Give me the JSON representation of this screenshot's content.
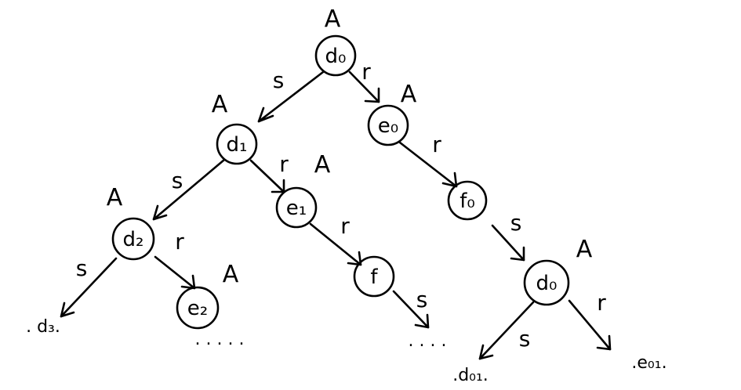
{
  "diagram": {
    "nodes": {
      "d0": {
        "label": "d₀",
        "annotation": "A"
      },
      "d1": {
        "label": "d₁",
        "annotation": "A"
      },
      "e0": {
        "label": "e₀",
        "annotation": "A"
      },
      "d2": {
        "label": "d₂",
        "annotation": "A"
      },
      "e1": {
        "label": "e₁",
        "annotation": "A"
      },
      "f0": {
        "label": "f₀"
      },
      "e2": {
        "label": "e₂",
        "annotation": "A"
      },
      "f": {
        "label": "f"
      },
      "d0b": {
        "label": "d₀",
        "annotation": "A"
      }
    },
    "edges": {
      "d0_d1": {
        "label": "s"
      },
      "d0_e0": {
        "label": "r"
      },
      "d1_d2": {
        "label": "s"
      },
      "d1_e1": {
        "label": "r"
      },
      "e0_f0": {
        "label": "r"
      },
      "d2_d3": {
        "label": "s"
      },
      "d2_e2": {
        "label": "r"
      },
      "e1_f": {
        "label": "r"
      },
      "f0_d0b": {
        "label": "s"
      },
      "f_out": {
        "label": "s"
      },
      "d0b_d01": {
        "label": "s"
      },
      "d0b_e01": {
        "label": "r"
      }
    },
    "leaves": {
      "d3": {
        "label": ". d₃."
      },
      "d01": {
        "label": ".d₀₁."
      },
      "e01": {
        "label": ".e₀₁."
      }
    },
    "ellipses": {
      "under_e2": ". . . . .",
      "under_f": ". . . ."
    }
  }
}
